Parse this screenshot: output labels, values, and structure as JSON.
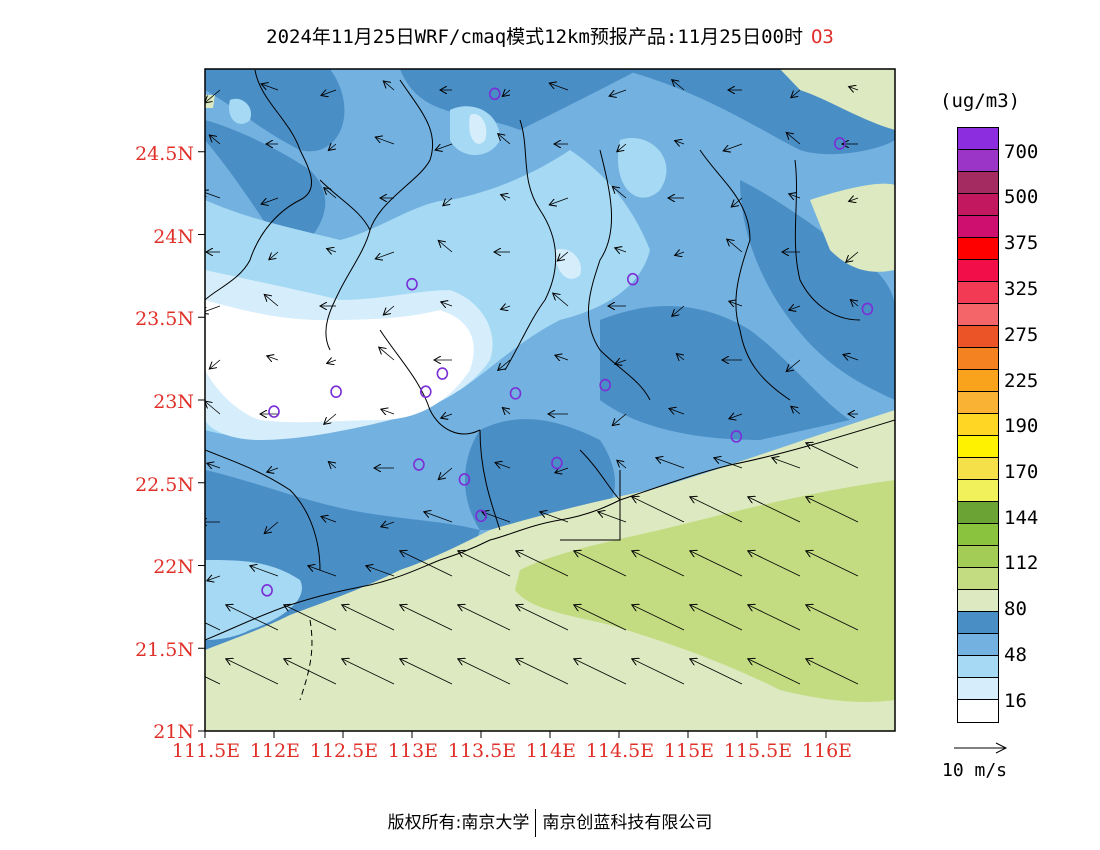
{
  "title": {
    "text": "2024年11月25日WRF/cmaq模式12km预报产品:11月25日00时",
    "species": "O3"
  },
  "axes": {
    "lat_labels": [
      "24.5N",
      "24N",
      "23.5N",
      "23N",
      "22.5N",
      "22N",
      "21.5N",
      "21N"
    ],
    "lon_labels": [
      "111.5E",
      "112E",
      "112.5E",
      "113E",
      "113.5E",
      "114E",
      "114.5E",
      "115E",
      "115.5E",
      "116E"
    ],
    "lat_range": [
      21,
      25
    ],
    "lon_range": [
      111.5,
      116.5
    ]
  },
  "legend": {
    "unit": "(ug/m3)",
    "colors": [
      "#ffffff",
      "#d6eefb",
      "#a6d9f3",
      "#72b1e0",
      "#4a8ec6",
      "#dde9c0",
      "#c3dc82",
      "#a2cc55",
      "#8ac43f",
      "#6ba334",
      "#f1f15c",
      "#f5e049",
      "#fff200",
      "#ffd623",
      "#f9b233",
      "#f8a31b",
      "#f58220",
      "#ea5427",
      "#f4656a",
      "#f23a55",
      "#f20f49",
      "#ff0000",
      "#cf0f6f",
      "#c1185f",
      "#a32b62",
      "#9b35c8",
      "#8c2de0"
    ],
    "labels": [
      "16",
      "48",
      "80",
      "112",
      "144",
      "170",
      "190",
      "225",
      "275",
      "325",
      "375",
      "500",
      "700"
    ]
  },
  "scale": {
    "label": "10 m/s"
  },
  "stations": [
    {
      "lon": 116.1,
      "lat": 24.55
    },
    {
      "lon": 113.6,
      "lat": 24.85
    },
    {
      "lon": 113.0,
      "lat": 23.7
    },
    {
      "lon": 114.6,
      "lat": 23.73
    },
    {
      "lon": 116.3,
      "lat": 23.55
    },
    {
      "lon": 112.0,
      "lat": 22.93
    },
    {
      "lon": 112.45,
      "lat": 23.05
    },
    {
      "lon": 113.1,
      "lat": 23.05
    },
    {
      "lon": 113.22,
      "lat": 23.16
    },
    {
      "lon": 113.75,
      "lat": 23.04
    },
    {
      "lon": 114.4,
      "lat": 23.09
    },
    {
      "lon": 115.35,
      "lat": 22.78
    },
    {
      "lon": 113.05,
      "lat": 22.61
    },
    {
      "lon": 113.38,
      "lat": 22.52
    },
    {
      "lon": 114.05,
      "lat": 22.62
    },
    {
      "lon": 113.5,
      "lat": 22.3
    },
    {
      "lon": 111.95,
      "lat": 21.85
    }
  ],
  "footer": {
    "left": "版权所有:南京大学",
    "right": "南京创蓝科技有限公司"
  },
  "colors": {
    "axis_label": "#e0302a",
    "station": "#7a2fd6"
  }
}
